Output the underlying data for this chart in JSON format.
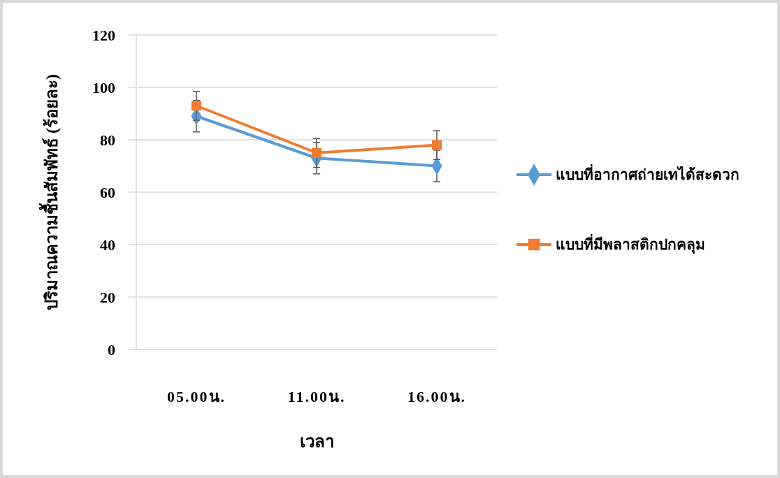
{
  "chart_data": {
    "type": "line",
    "xlabel": "เวลา",
    "ylabel": "ปริมาณความชื้นสัมพัทธ์ (ร้อยละ)",
    "categories": [
      "05.00น.",
      "11.00น.",
      "16.00น."
    ],
    "series": [
      {
        "name": "แบบที่อากาศถ่ายเทได้สะดวก",
        "color": "#5b9bd5",
        "values": [
          89,
          73,
          70
        ],
        "errors": [
          6,
          6,
          6
        ],
        "marker": "diamond"
      },
      {
        "name": "แบบที่มีพลาสติกปกคลุม",
        "color": "#ed7d31",
        "values": [
          93,
          75,
          78
        ],
        "errors": [
          5.5,
          5.5,
          5.5
        ],
        "marker": "square"
      }
    ],
    "ylim": [
      0,
      120
    ],
    "yticks": [
      0,
      20,
      40,
      60,
      80,
      100,
      120
    ],
    "grid": "y",
    "legend": "right"
  }
}
